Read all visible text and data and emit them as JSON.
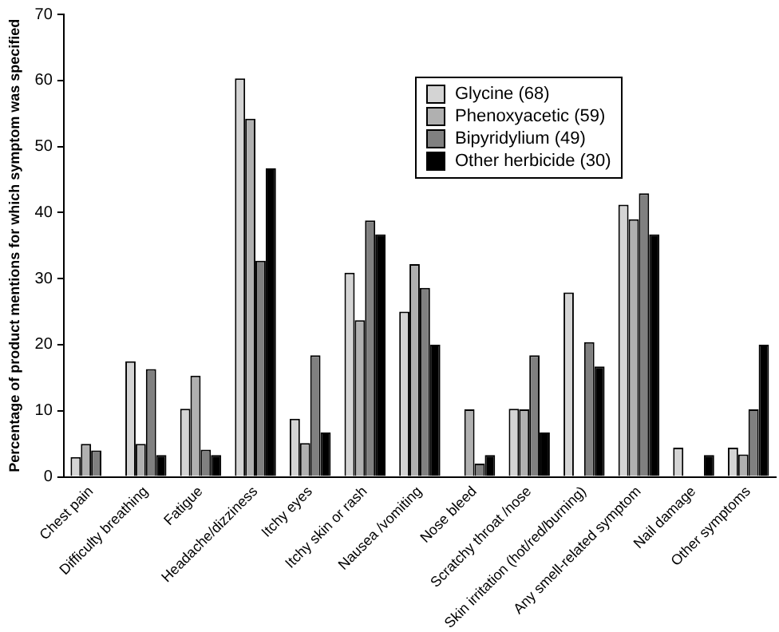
{
  "chart_data": {
    "type": "bar",
    "ylabel": "Percentage of product mentions for which symptom was specified",
    "categories": [
      "Chest pain",
      "Difficulty breathing",
      "Fatigue",
      "Headache/dizziness",
      "Itchy eyes",
      "Itchy skin or rash",
      "Nausea /vomiting",
      "Nose bleed",
      "Scratchy throat /nose",
      "Skin irritation (hot/red/burning)",
      "Any smell-related symptom",
      "Nail damage",
      "Other symptoms"
    ],
    "series": [
      {
        "name": "Glycine (68)",
        "color": "#d4d4d4",
        "values": [
          3,
          17.5,
          10.3,
          60.3,
          8.8,
          30.9,
          25,
          0,
          10.3,
          27.9,
          41.2,
          4.4,
          4.4
        ]
      },
      {
        "name": "Phenoxyacetic (59)",
        "color": "#b0b0b0",
        "values": [
          5,
          5,
          15.3,
          54.2,
          5.1,
          23.7,
          32.2,
          10.2,
          10.2,
          0,
          39,
          0,
          3.4
        ]
      },
      {
        "name": "Bipyridylium (49)",
        "color": "#808080",
        "values": [
          4,
          16.3,
          4.1,
          32.7,
          18.4,
          38.8,
          28.6,
          2,
          18.4,
          20.4,
          42.9,
          0,
          10.2
        ]
      },
      {
        "name": "Other herbicide (30)",
        "color": "#000000",
        "values": [
          0,
          3.3,
          3.3,
          46.7,
          6.7,
          36.7,
          20,
          3.3,
          6.7,
          16.7,
          36.7,
          3.3,
          20
        ]
      }
    ],
    "ylim": [
      0,
      70
    ],
    "yticks": [
      0,
      10,
      20,
      30,
      40,
      50,
      60,
      70
    ],
    "grid": false,
    "legend": "top right"
  }
}
